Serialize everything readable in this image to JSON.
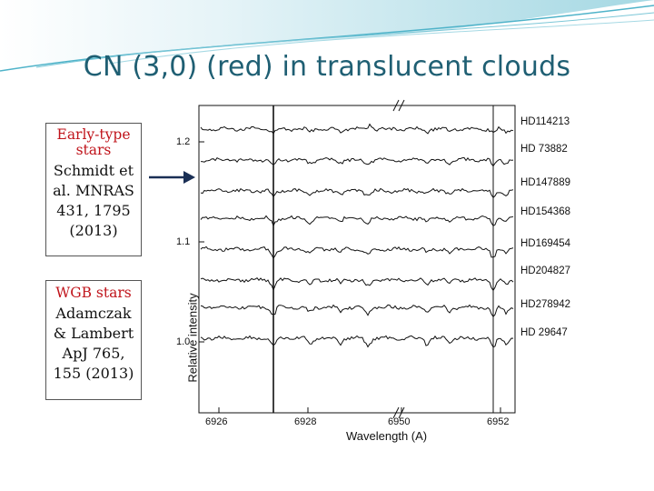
{
  "slide": {
    "title": "CN (3,0) (red) in translucent clouds"
  },
  "colors": {
    "title": "#1f5f73",
    "accent": "#c0141b",
    "swoosh": "#4fb3c9"
  },
  "box1": {
    "heading_line1": "Early-type",
    "heading_line2": "stars",
    "ref_line1": "Schmidt et",
    "ref_line2": "al. MNRAS",
    "ref_line3": "431, 1795",
    "ref_line4": "(2013)"
  },
  "box2": {
    "heading": "WGB stars",
    "ref_line1": "Adamczak",
    "ref_line2": "& Lambert",
    "ref_line3": "ApJ 765,",
    "ref_line4": "155 (2013)"
  },
  "figure": {
    "ylabel": "Relative intensity",
    "xlabel": "Wavelength (A)",
    "yticks": [
      "1.2",
      "1.1",
      "1.0"
    ],
    "xticks": [
      "6926",
      "6928",
      "6950",
      "6952"
    ],
    "stars": [
      "HD114213",
      "HD 73882",
      "HD147889",
      "HD154368",
      "HD169454",
      "HD204827",
      "HD278942",
      "HD 29647"
    ]
  }
}
